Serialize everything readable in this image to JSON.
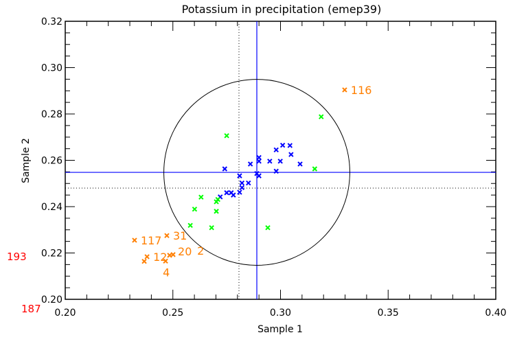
{
  "chart_data": {
    "type": "scatter",
    "title": "Potassium in precipitation (emep39)",
    "xlabel": "Sample 1",
    "ylabel": "Sample 2",
    "xlim": [
      0.2,
      0.4
    ],
    "ylim": [
      0.2,
      0.32
    ],
    "xticks": [
      "0.20",
      "0.25",
      "0.30",
      "0.35",
      "0.40"
    ],
    "yticks": [
      "0.20",
      "0.22",
      "0.24",
      "0.26",
      "0.28",
      "0.30",
      "0.32"
    ],
    "grid": false,
    "marker": "x",
    "series": [
      {
        "color": "#0000ff",
        "points": [
          [
            0.2741,
            0.2563
          ],
          [
            0.281,
            0.2533
          ],
          [
            0.2821,
            0.2502
          ],
          [
            0.2851,
            0.2502
          ],
          [
            0.2821,
            0.2482
          ],
          [
            0.281,
            0.2462
          ],
          [
            0.275,
            0.246
          ],
          [
            0.2771,
            0.246
          ],
          [
            0.2781,
            0.245
          ],
          [
            0.272,
            0.2442
          ],
          [
            0.286,
            0.2584
          ],
          [
            0.289,
            0.2543
          ],
          [
            0.29,
            0.2533
          ],
          [
            0.29,
            0.2612
          ],
          [
            0.29,
            0.2596
          ],
          [
            0.295,
            0.2596
          ],
          [
            0.298,
            0.2645
          ],
          [
            0.301,
            0.2665
          ],
          [
            0.3044,
            0.2664
          ],
          [
            0.3049,
            0.2625
          ],
          [
            0.2999,
            0.2596
          ],
          [
            0.298,
            0.2553
          ],
          [
            0.3091,
            0.2584
          ]
        ]
      },
      {
        "color": "#00ff00",
        "points": [
          [
            0.3189,
            0.2788
          ],
          [
            0.275,
            0.2706
          ],
          [
            0.3159,
            0.2563
          ],
          [
            0.2631,
            0.2441
          ],
          [
            0.2709,
            0.2431
          ],
          [
            0.2702,
            0.2421
          ],
          [
            0.2601,
            0.2389
          ],
          [
            0.2702,
            0.238
          ],
          [
            0.2581,
            0.2319
          ],
          [
            0.268,
            0.2309
          ],
          [
            0.2941,
            0.2309
          ]
        ]
      },
      {
        "color": "#ff7f00",
        "points": [
          {
            "x": 0.3298,
            "y": 0.2904,
            "label": "116"
          },
          {
            "x": 0.2322,
            "y": 0.2255,
            "label": "117"
          },
          {
            "x": 0.2472,
            "y": 0.2275,
            "label": "31"
          },
          {
            "x": 0.238,
            "y": 0.2184,
            "label": "12"
          },
          {
            "x": 0.2367,
            "y": 0.2164,
            "label": ""
          },
          {
            "x": 0.2466,
            "y": 0.2165,
            "label": "4"
          },
          {
            "x": 0.2485,
            "y": 0.219,
            "label": "20"
          },
          {
            "x": 0.2501,
            "y": 0.2193,
            "label": "2"
          }
        ]
      }
    ],
    "offscale_labels": {
      "color": "#ff0000",
      "items": [
        "193",
        "187"
      ]
    },
    "reference_lines": {
      "solid_color": "#0000ff",
      "solid_x": 0.289,
      "solid_y": 0.2548,
      "dotted_x": 0.2807,
      "dotted_y": 0.248
    },
    "circle": {
      "center": [
        0.289,
        0.2548
      ],
      "radius": 0.0432,
      "color": "#000000"
    }
  }
}
